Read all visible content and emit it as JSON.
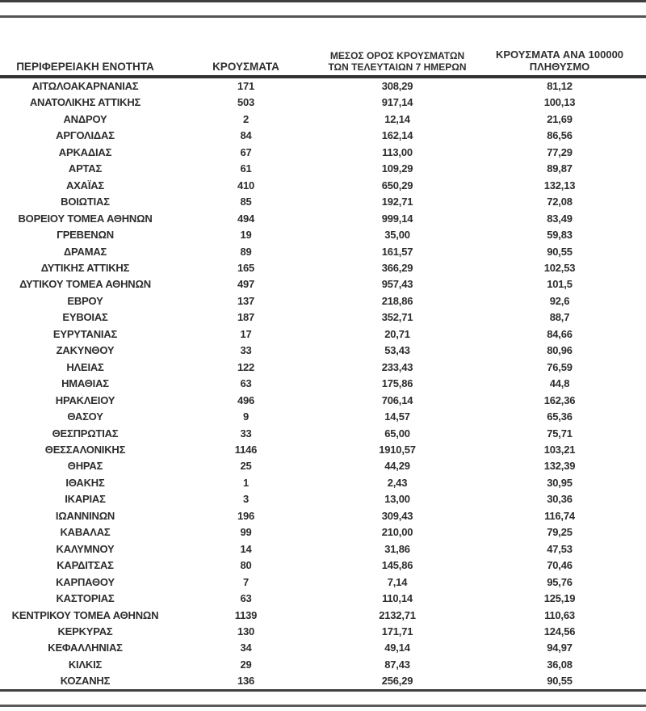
{
  "colors": {
    "text": "#2d2d2d",
    "rule": "#4a4a4a"
  },
  "table": {
    "columns": [
      {
        "id": "region",
        "label": "ΠΕΡΙΦΕΡΕΙΑΚΗ ΕΝΟΤΗΤΑ",
        "lines": [
          "ΠΕΡΙΦΕΡΕΙΑΚΗ ΕΝΟΤΗΤΑ"
        ]
      },
      {
        "id": "cases",
        "label": "ΚΡΟΥΣΜΑΤΑ",
        "lines": [
          "ΚΡΟΥΣΜΑΤΑ"
        ]
      },
      {
        "id": "avg7",
        "label": "ΜΕΣΟΣ ΟΡΟΣ ΚΡΟΥΣΜΑΤΩΝ ΤΩΝ ΤΕΛΕΥΤΑΙΩΝ 7 ΗΜΕΡΩΝ",
        "lines": [
          "ΜΕΣΟΣ ΟΡΟΣ ΚΡΟΥΣΜΑΤΩΝ",
          "ΤΩΝ ΤΕΛΕΥΤΑΙΩΝ 7 ΗΜΕΡΩΝ"
        ]
      },
      {
        "id": "per100k",
        "label": "ΚΡΟΥΣΜΑΤΑ ΑΝΑ 100000 ΠΛΗΘΥΣΜΟ",
        "lines": [
          "ΚΡΟΥΣΜΑΤΑ ΑΝΑ 100000",
          "ΠΛΗΘΥΣΜΟ"
        ]
      }
    ],
    "rows": [
      [
        "ΑΙΤΩΛΟΑΚΑΡΝΑΝΙΑΣ",
        "171",
        "308,29",
        "81,12"
      ],
      [
        "ΑΝΑΤΟΛΙΚΗΣ ΑΤΤΙΚΗΣ",
        "503",
        "917,14",
        "100,13"
      ],
      [
        "ΑΝΔΡΟΥ",
        "2",
        "12,14",
        "21,69"
      ],
      [
        "ΑΡΓΟΛΙΔΑΣ",
        "84",
        "162,14",
        "86,56"
      ],
      [
        "ΑΡΚΑΔΙΑΣ",
        "67",
        "113,00",
        "77,29"
      ],
      [
        "ΑΡΤΑΣ",
        "61",
        "109,29",
        "89,87"
      ],
      [
        "ΑΧΑΪΑΣ",
        "410",
        "650,29",
        "132,13"
      ],
      [
        "ΒΟΙΩΤΙΑΣ",
        "85",
        "192,71",
        "72,08"
      ],
      [
        "ΒΟΡΕΙΟΥ ΤΟΜΕΑ ΑΘΗΝΩΝ",
        "494",
        "999,14",
        "83,49"
      ],
      [
        "ΓΡΕΒΕΝΩΝ",
        "19",
        "35,00",
        "59,83"
      ],
      [
        "ΔΡΑΜΑΣ",
        "89",
        "161,57",
        "90,55"
      ],
      [
        "ΔΥΤΙΚΗΣ ΑΤΤΙΚΗΣ",
        "165",
        "366,29",
        "102,53"
      ],
      [
        "ΔΥΤΙΚΟΥ ΤΟΜΕΑ ΑΘΗΝΩΝ",
        "497",
        "957,43",
        "101,5"
      ],
      [
        "ΕΒΡΟΥ",
        "137",
        "218,86",
        "92,6"
      ],
      [
        "ΕΥΒΟΙΑΣ",
        "187",
        "352,71",
        "88,7"
      ],
      [
        "ΕΥΡΥΤΑΝΙΑΣ",
        "17",
        "20,71",
        "84,66"
      ],
      [
        "ΖΑΚΥΝΘΟΥ",
        "33",
        "53,43",
        "80,96"
      ],
      [
        "ΗΛΕΙΑΣ",
        "122",
        "233,43",
        "76,59"
      ],
      [
        "ΗΜΑΘΙΑΣ",
        "63",
        "175,86",
        "44,8"
      ],
      [
        "ΗΡΑΚΛΕΙΟΥ",
        "496",
        "706,14",
        "162,36"
      ],
      [
        "ΘΑΣΟΥ",
        "9",
        "14,57",
        "65,36"
      ],
      [
        "ΘΕΣΠΡΩΤΙΑΣ",
        "33",
        "65,00",
        "75,71"
      ],
      [
        "ΘΕΣΣΑΛΟΝΙΚΗΣ",
        "1146",
        "1910,57",
        "103,21"
      ],
      [
        "ΘΗΡΑΣ",
        "25",
        "44,29",
        "132,39"
      ],
      [
        "ΙΘΑΚΗΣ",
        "1",
        "2,43",
        "30,95"
      ],
      [
        "ΙΚΑΡΙΑΣ",
        "3",
        "13,00",
        "30,36"
      ],
      [
        "ΙΩΑΝΝΙΝΩΝ",
        "196",
        "309,43",
        "116,74"
      ],
      [
        "ΚΑΒΑΛΑΣ",
        "99",
        "210,00",
        "79,25"
      ],
      [
        "ΚΑΛΥΜΝΟΥ",
        "14",
        "31,86",
        "47,53"
      ],
      [
        "ΚΑΡΔΙΤΣΑΣ",
        "80",
        "145,86",
        "70,46"
      ],
      [
        "ΚΑΡΠΑΘΟΥ",
        "7",
        "7,14",
        "95,76"
      ],
      [
        "ΚΑΣΤΟΡΙΑΣ",
        "63",
        "110,14",
        "125,19"
      ],
      [
        "ΚΕΝΤΡΙΚΟΥ ΤΟΜΕΑ ΑΘΗΝΩΝ",
        "1139",
        "2132,71",
        "110,63"
      ],
      [
        "ΚΕΡΚΥΡΑΣ",
        "130",
        "171,71",
        "124,56"
      ],
      [
        "ΚΕΦΑΛΛΗΝΙΑΣ",
        "34",
        "49,14",
        "94,97"
      ],
      [
        "ΚΙΛΚΙΣ",
        "29",
        "87,43",
        "36,08"
      ],
      [
        "ΚΟΖΑΝΗΣ",
        "136",
        "256,29",
        "90,55"
      ]
    ]
  }
}
